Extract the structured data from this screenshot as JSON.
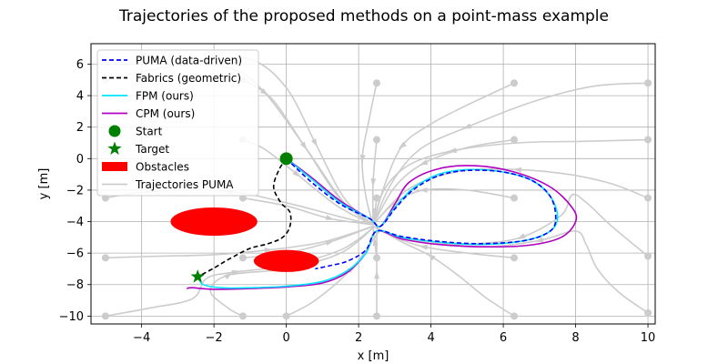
{
  "chart_data": {
    "type": "line",
    "title": "Trajectories of the proposed methods on a point-mass example",
    "xlabel": "x [m]",
    "ylabel": "y [m]",
    "xlim": [
      -5.4,
      10.2
    ],
    "ylim": [
      -10.5,
      7.3
    ],
    "xticks": [
      -4,
      -2,
      0,
      2,
      4,
      6,
      8,
      10
    ],
    "yticks": [
      6,
      4,
      2,
      0,
      -2,
      -4,
      -6,
      -8,
      -10
    ],
    "xtick_labels": [
      "−4",
      "−2",
      "0",
      "2",
      "4",
      "6",
      "8",
      "10"
    ],
    "ytick_labels": [
      "6",
      "4",
      "2",
      "0",
      "−2",
      "−4",
      "−6",
      "−8",
      "−10"
    ],
    "grid": true,
    "legend_position": "top-left",
    "obstacles": [
      {
        "center": [
          -2.0,
          -4.0
        ],
        "semi_axes": [
          1.2,
          0.9
        ],
        "color": "#ff0000"
      },
      {
        "center": [
          0.0,
          -6.5
        ],
        "semi_axes": [
          0.9,
          0.7
        ],
        "color": "#ff0000"
      }
    ],
    "start": {
      "x": 0.0,
      "y": 0.0,
      "color": "#008000"
    },
    "target": {
      "x": -2.45,
      "y": -7.5,
      "color": "#008000"
    },
    "series": [
      {
        "name": "PUMA (data-driven)",
        "color": "#0000ff",
        "style": "dashed",
        "x": [
          0.0,
          0.7,
          1.5,
          2.3,
          2.6,
          3.0,
          3.5,
          4.2,
          5.0,
          6.0,
          6.8,
          7.3,
          7.45,
          7.3,
          6.6,
          5.4,
          4.2,
          3.2,
          2.5,
          2.2,
          1.7,
          1.2,
          0.8
        ],
        "y": [
          0.0,
          -1.5,
          -2.9,
          -3.8,
          -4.3,
          -3.2,
          -2.0,
          -1.1,
          -0.75,
          -0.85,
          -1.4,
          -2.4,
          -3.7,
          -4.6,
          -5.2,
          -5.4,
          -5.25,
          -4.95,
          -4.6,
          -5.8,
          -6.5,
          -6.8,
          -7.0
        ]
      },
      {
        "name": "Fabrics (geometric)",
        "color": "#000000",
        "style": "dashed",
        "x": [
          0.0,
          -0.2,
          -0.35,
          -0.15,
          0.1,
          0.1,
          -0.1,
          -0.5,
          -1.0,
          -1.6,
          -2.0,
          -2.45
        ],
        "y": [
          0.0,
          -0.7,
          -1.8,
          -2.8,
          -3.4,
          -4.3,
          -5.0,
          -5.4,
          -5.7,
          -6.4,
          -6.95,
          -7.5
        ]
      },
      {
        "name": "FPM (ours)",
        "color": "#00e5ff",
        "style": "solid",
        "x": [
          0.0,
          0.7,
          1.5,
          2.3,
          2.6,
          3.0,
          3.5,
          4.2,
          5.0,
          6.0,
          6.8,
          7.3,
          7.5,
          7.3,
          6.6,
          5.4,
          4.2,
          3.2,
          2.5,
          2.2,
          1.7,
          1.0,
          0.0,
          -1.0,
          -1.8,
          -2.3,
          -2.4
        ],
        "y": [
          0.0,
          -1.3,
          -2.8,
          -3.8,
          -4.3,
          -3.1,
          -1.9,
          -1.0,
          -0.7,
          -0.85,
          -1.4,
          -2.4,
          -3.7,
          -4.6,
          -5.2,
          -5.45,
          -5.3,
          -5.0,
          -4.6,
          -6.0,
          -7.1,
          -7.8,
          -8.1,
          -8.2,
          -8.2,
          -8.0,
          -7.6
        ]
      },
      {
        "name": "CPM (ours)",
        "color": "#b000c0",
        "style": "solid",
        "x": [
          0.0,
          0.7,
          1.5,
          2.3,
          2.6,
          3.0,
          3.4,
          4.2,
          5.2,
          6.3,
          7.3,
          7.9,
          8.0,
          7.6,
          6.7,
          5.5,
          4.2,
          3.2,
          2.5,
          2.2,
          1.7,
          1.0,
          0.0,
          -1.0,
          -2.0,
          -2.6,
          -2.75
        ],
        "y": [
          0.0,
          -1.2,
          -2.7,
          -3.8,
          -4.3,
          -2.9,
          -1.5,
          -0.65,
          -0.45,
          -0.85,
          -1.8,
          -3.1,
          -4.0,
          -5.0,
          -5.5,
          -5.6,
          -5.45,
          -5.1,
          -4.6,
          -6.0,
          -7.2,
          -7.9,
          -8.15,
          -8.25,
          -8.3,
          -8.2,
          -8.25
        ]
      }
    ],
    "legend_entries": [
      {
        "label": "PUMA (data-driven)",
        "kind": "line",
        "color": "#0000ff",
        "style": "dashed"
      },
      {
        "label": "Fabrics (geometric)",
        "kind": "line",
        "color": "#000000",
        "style": "dashed"
      },
      {
        "label": "FPM (ours)",
        "kind": "line",
        "color": "#00e5ff",
        "style": "solid"
      },
      {
        "label": "CPM (ours)",
        "kind": "line",
        "color": "#b000c0",
        "style": "solid"
      },
      {
        "label": "Start",
        "kind": "circle",
        "color": "#008000"
      },
      {
        "label": "Target",
        "kind": "star",
        "color": "#008000"
      },
      {
        "label": "Obstacles",
        "kind": "rect",
        "color": "#ff0000"
      },
      {
        "label": "Trajectories PUMA",
        "kind": "line",
        "color": "#cccccc",
        "style": "solid"
      }
    ],
    "puma_trajectories": {
      "color": "#cccccc",
      "starts": [
        [
          -5.0,
          5.0
        ],
        [
          -5.0,
          -2.5
        ],
        [
          -5.0,
          -6.3
        ],
        [
          -5.0,
          -10.0
        ],
        [
          -2.5,
          6.3
        ],
        [
          -1.2,
          5.0
        ],
        [
          -1.2,
          1.2
        ],
        [
          -1.2,
          -2.5
        ],
        [
          -1.2,
          -6.3
        ],
        [
          -1.2,
          -10.0
        ],
        [
          0.0,
          -10.0
        ],
        [
          2.5,
          4.8
        ],
        [
          2.5,
          1.2
        ],
        [
          2.5,
          -2.5
        ],
        [
          2.5,
          -6.3
        ],
        [
          2.5,
          -10.0
        ],
        [
          6.3,
          4.8
        ],
        [
          6.3,
          1.2
        ],
        [
          6.3,
          -2.5
        ],
        [
          6.3,
          -6.3
        ],
        [
          6.3,
          -10.0
        ],
        [
          10.0,
          4.8
        ],
        [
          10.0,
          1.2
        ],
        [
          10.0,
          -2.5
        ],
        [
          10.0,
          -6.2
        ],
        [
          10.0,
          -9.8
        ]
      ],
      "curves": [
        {
          "x": [
            -5.0,
            -3.0,
            -1.5,
            -0.6,
            0.5,
            1.6,
            2.4
          ],
          "y": [
            5.0,
            5.9,
            5.7,
            4.2,
            0.8,
            -2.8,
            -4.2
          ]
        },
        {
          "x": [
            -2.5,
            -1.0,
            0.0,
            0.8,
            1.6,
            2.4
          ],
          "y": [
            6.3,
            6.3,
            4.5,
            1.0,
            -2.5,
            -4.2
          ]
        },
        {
          "x": [
            -1.2,
            -0.4,
            0.5,
            1.5,
            2.4
          ],
          "y": [
            5.0,
            3.8,
            0.8,
            -2.6,
            -4.2
          ]
        },
        {
          "x": [
            -1.2,
            -0.6,
            0.3,
            1.4,
            2.4
          ],
          "y": [
            1.2,
            0.6,
            -1.0,
            -3.0,
            -4.2
          ]
        },
        {
          "x": [
            -5.0,
            -4.2,
            -3.0,
            -1.5,
            0.0,
            1.5,
            2.4
          ],
          "y": [
            -2.5,
            -2.2,
            -2.0,
            -2.1,
            -2.8,
            -3.7,
            -4.2
          ]
        },
        {
          "x": [
            -1.2,
            0.0,
            1.2,
            2.4
          ],
          "y": [
            -2.5,
            -3.0,
            -3.8,
            -4.2
          ]
        },
        {
          "x": [
            -5.0,
            -3.6,
            -2.0,
            -0.5,
            1.0,
            2.4
          ],
          "y": [
            -6.3,
            -6.2,
            -6.1,
            -5.8,
            -5.3,
            -4.3
          ]
        },
        {
          "x": [
            -1.2,
            0.0,
            1.2,
            2.4
          ],
          "y": [
            -6.3,
            -6.0,
            -5.3,
            -4.3
          ]
        },
        {
          "x": [
            -5.0,
            -3.8,
            -2.6,
            -2.2,
            -1.4,
            0.0,
            1.5,
            2.4
          ],
          "y": [
            -10.0,
            -9.5,
            -8.9,
            -7.6,
            -7.2,
            -6.8,
            -5.8,
            -4.4
          ]
        },
        {
          "x": [
            -1.2,
            -1.6,
            -2.1,
            -1.6,
            0.0,
            1.5,
            2.4
          ],
          "y": [
            -10.0,
            -9.5,
            -8.4,
            -7.4,
            -7.0,
            -6.0,
            -4.4
          ]
        },
        {
          "x": [
            0.0,
            0.8,
            1.8,
            2.6
          ],
          "y": [
            -10.0,
            -9.0,
            -7.0,
            -4.5
          ]
        },
        {
          "x": [
            2.5,
            2.3,
            2.1,
            2.2,
            2.4
          ],
          "y": [
            4.8,
            2.6,
            0.0,
            -2.4,
            -4.2
          ]
        },
        {
          "x": [
            2.5,
            2.4,
            2.4
          ],
          "y": [
            1.2,
            -1.5,
            -4.2
          ]
        },
        {
          "x": [
            2.5,
            2.45,
            2.4
          ],
          "y": [
            -2.5,
            -3.4,
            -4.2
          ]
        },
        {
          "x": [
            2.5,
            2.45,
            2.4
          ],
          "y": [
            -6.3,
            -5.3,
            -4.3
          ]
        },
        {
          "x": [
            2.5,
            2.5,
            2.5
          ],
          "y": [
            -10.0,
            -7.4,
            -4.6
          ]
        },
        {
          "x": [
            6.3,
            5.0,
            4.0,
            3.2,
            2.7,
            2.4
          ],
          "y": [
            4.8,
            3.4,
            2.2,
            0.8,
            -1.8,
            -4.2
          ]
        },
        {
          "x": [
            6.3,
            5.0,
            3.8,
            3.0,
            2.4
          ],
          "y": [
            1.2,
            0.7,
            -0.3,
            -1.8,
            -4.2
          ]
        },
        {
          "x": [
            6.3,
            5.0,
            3.8,
            3.0,
            2.4
          ],
          "y": [
            -2.5,
            -2.0,
            -2.0,
            -2.8,
            -4.2
          ]
        },
        {
          "x": [
            6.3,
            5.0,
            3.8,
            3.0,
            2.4
          ],
          "y": [
            -6.3,
            -6.0,
            -5.6,
            -5.0,
            -4.3
          ]
        },
        {
          "x": [
            6.3,
            5.5,
            4.8,
            4.0,
            3.2,
            2.5
          ],
          "y": [
            -10.0,
            -8.8,
            -7.5,
            -6.2,
            -5.3,
            -4.4
          ]
        },
        {
          "x": [
            10.0,
            8.5,
            6.8,
            5.0,
            3.7,
            2.9,
            2.4
          ],
          "y": [
            4.8,
            4.6,
            3.6,
            2.0,
            0.6,
            -1.6,
            -4.2
          ]
        },
        {
          "x": [
            10.0,
            8.2,
            6.4,
            4.6,
            3.4,
            2.7,
            2.4
          ],
          "y": [
            1.2,
            1.1,
            1.0,
            0.5,
            -0.4,
            -2.0,
            -4.2
          ]
        },
        {
          "x": [
            10.0,
            9.0,
            7.8,
            6.4,
            4.8,
            3.4,
            2.4
          ],
          "y": [
            -2.5,
            -1.6,
            -1.0,
            -0.7,
            -0.8,
            -1.9,
            -4.2
          ]
        },
        {
          "x": [
            10.0,
            9.0,
            8.3,
            7.9,
            7.6,
            6.5,
            5.2,
            4.0,
            3.0,
            2.4
          ],
          "y": [
            -6.2,
            -4.3,
            -2.8,
            -2.3,
            -3.6,
            -5.0,
            -5.4,
            -5.3,
            -4.9,
            -4.3
          ]
        },
        {
          "x": [
            10.0,
            9.2,
            8.6,
            8.3,
            8.0,
            7.0,
            5.5,
            4.0,
            3.0,
            2.4
          ],
          "y": [
            -9.8,
            -8.5,
            -7.0,
            -5.5,
            -4.6,
            -5.2,
            -5.6,
            -5.3,
            -4.9,
            -4.3
          ]
        }
      ]
    }
  }
}
